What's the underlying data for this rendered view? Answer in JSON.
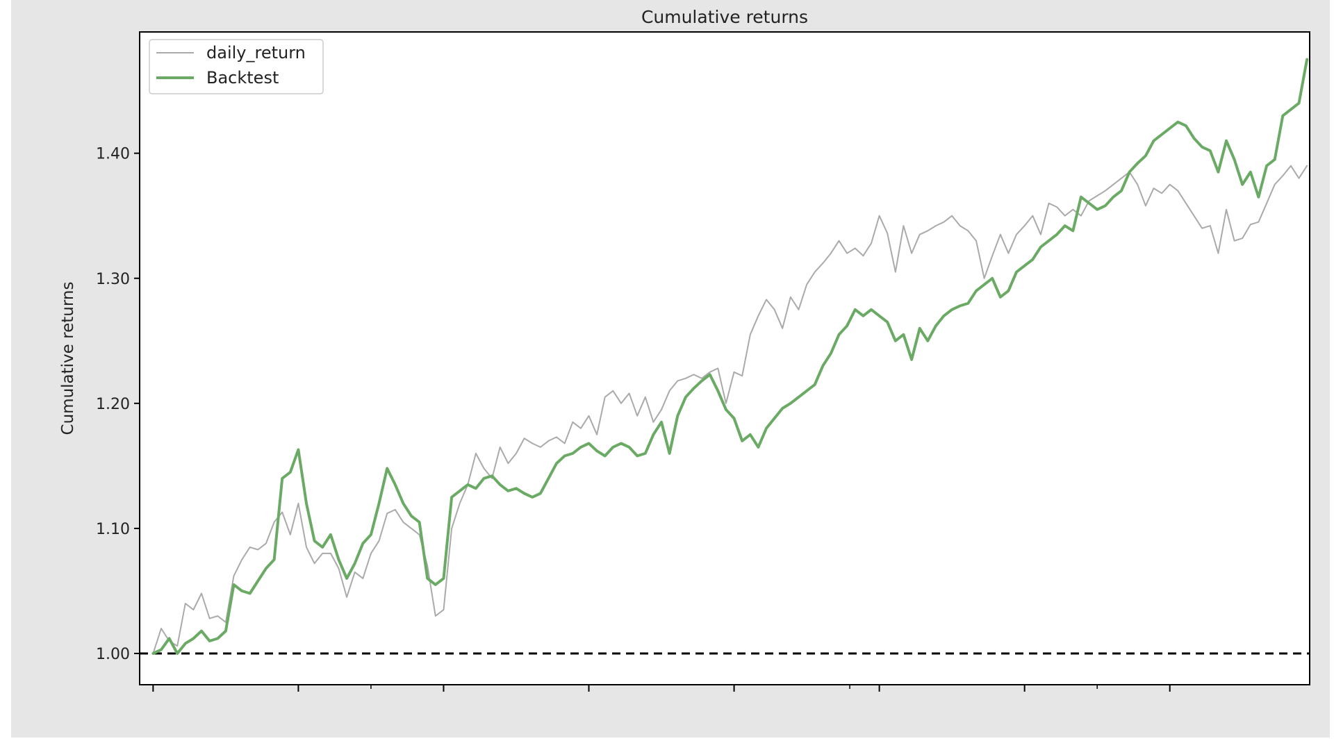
{
  "chart_data": {
    "type": "line",
    "title": "Cumulative returns",
    "xlabel": "",
    "ylabel": "Cumulative returns",
    "ylim": [
      0.975,
      1.497
    ],
    "yticks": [
      1.0,
      1.1,
      1.2,
      1.3,
      1.4
    ],
    "ytick_labels": [
      "1.00",
      "1.10",
      "1.20",
      "1.30",
      "1.40"
    ],
    "xlim": [
      -5,
      430
    ],
    "x_major_ticks": [
      0,
      54,
      108,
      162,
      216,
      270,
      324,
      378,
      432
    ],
    "x_minor_ticks": [
      -7,
      81,
      162,
      259,
      351,
      436
    ],
    "grid": false,
    "legend_position": "top-left",
    "baseline": {
      "y": 1.0,
      "style": "dashed",
      "color": "#000000"
    },
    "x": [
      0,
      3,
      6,
      9,
      12,
      15,
      18,
      21,
      24,
      27,
      30,
      33,
      36,
      39,
      42,
      45,
      48,
      51,
      54,
      57,
      60,
      63,
      66,
      69,
      72,
      75,
      78,
      81,
      84,
      87,
      90,
      93,
      96,
      99,
      102,
      105,
      108,
      111,
      114,
      117,
      120,
      123,
      126,
      129,
      132,
      135,
      138,
      141,
      144,
      147,
      150,
      153,
      156,
      159,
      162,
      165,
      168,
      171,
      174,
      177,
      180,
      183,
      186,
      189,
      192,
      195,
      198,
      201,
      204,
      207,
      210,
      213,
      216,
      219,
      222,
      225,
      228,
      231,
      234,
      237,
      240,
      243,
      246,
      249,
      252,
      255,
      258,
      261,
      264,
      267,
      270,
      273,
      276,
      279,
      282,
      285,
      288,
      291,
      294,
      297,
      300,
      303,
      306,
      309,
      312,
      315,
      318,
      321,
      324,
      327,
      330,
      333,
      336,
      339,
      342,
      345,
      348,
      351,
      354,
      357,
      360,
      363,
      366,
      369,
      372,
      375,
      378,
      381,
      384,
      387,
      390,
      393,
      396,
      399,
      402,
      405,
      408,
      411,
      414,
      417,
      420,
      423,
      426,
      429
    ],
    "series": [
      {
        "name": "daily_return",
        "color": "#aaaaaa",
        "width": 2,
        "values": [
          1.0,
          1.02,
          1.01,
          1.006,
          1.04,
          1.035,
          1.048,
          1.028,
          1.03,
          1.025,
          1.062,
          1.075,
          1.085,
          1.083,
          1.088,
          1.105,
          1.113,
          1.095,
          1.12,
          1.085,
          1.072,
          1.08,
          1.08,
          1.068,
          1.045,
          1.065,
          1.06,
          1.08,
          1.09,
          1.112,
          1.115,
          1.105,
          1.1,
          1.095,
          1.07,
          1.03,
          1.035,
          1.1,
          1.12,
          1.135,
          1.16,
          1.148,
          1.14,
          1.165,
          1.152,
          1.16,
          1.172,
          1.168,
          1.165,
          1.17,
          1.173,
          1.168,
          1.185,
          1.18,
          1.19,
          1.175,
          1.205,
          1.21,
          1.2,
          1.208,
          1.19,
          1.205,
          1.185,
          1.195,
          1.21,
          1.218,
          1.22,
          1.223,
          1.22,
          1.225,
          1.228,
          1.2,
          1.225,
          1.222,
          1.255,
          1.27,
          1.283,
          1.275,
          1.26,
          1.285,
          1.275,
          1.295,
          1.305,
          1.312,
          1.32,
          1.33,
          1.32,
          1.324,
          1.318,
          1.328,
          1.35,
          1.336,
          1.305,
          1.342,
          1.32,
          1.335,
          1.338,
          1.342,
          1.345,
          1.35,
          1.342,
          1.338,
          1.33,
          1.3,
          1.318,
          1.335,
          1.32,
          1.335,
          1.342,
          1.35,
          1.335,
          1.36,
          1.357,
          1.35,
          1.355,
          1.35,
          1.362,
          1.366,
          1.37,
          1.375,
          1.38,
          1.385,
          1.375,
          1.358,
          1.372,
          1.368,
          1.375,
          1.37,
          1.36,
          1.35,
          1.34,
          1.342,
          1.32,
          1.355,
          1.33,
          1.332,
          1.343,
          1.345,
          1.36,
          1.375,
          1.382,
          1.39,
          1.38,
          1.39
        ]
      },
      {
        "name": "Backtest",
        "color": "#6aaa64",
        "width": 4,
        "values": [
          1.0,
          1.003,
          1.012,
          1.0,
          1.008,
          1.012,
          1.018,
          1.01,
          1.012,
          1.018,
          1.055,
          1.05,
          1.048,
          1.058,
          1.068,
          1.075,
          1.14,
          1.145,
          1.163,
          1.12,
          1.09,
          1.085,
          1.095,
          1.075,
          1.06,
          1.072,
          1.088,
          1.095,
          1.12,
          1.148,
          1.135,
          1.12,
          1.11,
          1.105,
          1.06,
          1.055,
          1.06,
          1.125,
          1.13,
          1.135,
          1.132,
          1.14,
          1.142,
          1.135,
          1.13,
          1.132,
          1.128,
          1.125,
          1.128,
          1.14,
          1.152,
          1.158,
          1.16,
          1.165,
          1.168,
          1.162,
          1.158,
          1.165,
          1.168,
          1.165,
          1.158,
          1.16,
          1.175,
          1.185,
          1.16,
          1.19,
          1.205,
          1.212,
          1.218,
          1.223,
          1.21,
          1.195,
          1.188,
          1.17,
          1.175,
          1.165,
          1.18,
          1.188,
          1.196,
          1.2,
          1.205,
          1.21,
          1.215,
          1.23,
          1.24,
          1.255,
          1.262,
          1.275,
          1.27,
          1.275,
          1.27,
          1.265,
          1.25,
          1.255,
          1.235,
          1.26,
          1.25,
          1.262,
          1.27,
          1.275,
          1.278,
          1.28,
          1.29,
          1.295,
          1.3,
          1.285,
          1.29,
          1.305,
          1.31,
          1.315,
          1.325,
          1.33,
          1.335,
          1.342,
          1.338,
          1.365,
          1.36,
          1.355,
          1.358,
          1.365,
          1.37,
          1.385,
          1.392,
          1.398,
          1.41,
          1.415,
          1.42,
          1.425,
          1.422,
          1.412,
          1.405,
          1.402,
          1.385,
          1.41,
          1.395,
          1.375,
          1.385,
          1.365,
          1.39,
          1.395,
          1.43,
          1.435,
          1.44,
          1.475
        ]
      }
    ]
  }
}
